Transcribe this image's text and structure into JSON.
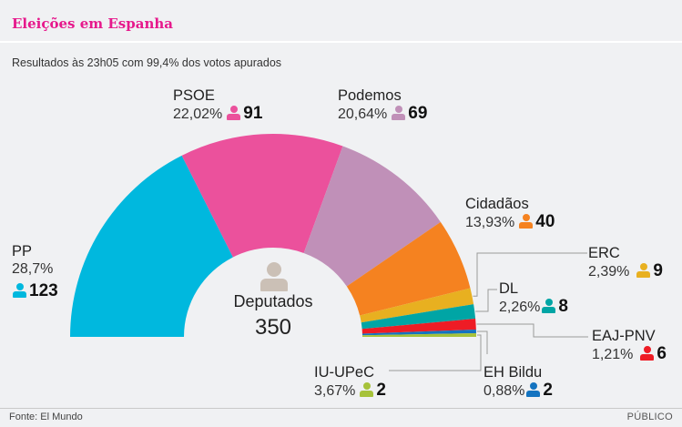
{
  "header": {
    "title": "Eleições em Espanha",
    "subtitle": "Resultados às 23h05 com 99,4% dos votos apurados"
  },
  "center": {
    "label": "Deputados",
    "total": "350",
    "icon": "person-icon"
  },
  "footer": {
    "source": "Fonte: El Mundo",
    "brand": "PÚBLICO"
  },
  "chart_data": {
    "type": "pie",
    "subtype": "hemicycle",
    "title": "Eleições em Espanha",
    "subtitle": "Resultados às 23h05 com 99,4% dos votos apurados",
    "total_seats": 350,
    "parties": [
      {
        "name": "PP",
        "pct": "28,7%",
        "pct_value": 28.7,
        "seats": 123,
        "color": "#00b8de"
      },
      {
        "name": "PSOE",
        "pct": "22,02%",
        "pct_value": 22.02,
        "seats": 91,
        "color": "#eb519c"
      },
      {
        "name": "Podemos",
        "pct": "20,64%",
        "pct_value": 20.64,
        "seats": 69,
        "color": "#c090b8"
      },
      {
        "name": "Cidadãos",
        "pct": "13,93%",
        "pct_value": 13.93,
        "seats": 40,
        "color": "#f58220"
      },
      {
        "name": "ERC",
        "pct": "2,39%",
        "pct_value": 2.39,
        "seats": 9,
        "color": "#e8b020"
      },
      {
        "name": "DL",
        "pct": "2,26%",
        "pct_value": 2.26,
        "seats": 8,
        "color": "#00a5a5"
      },
      {
        "name": "EAJ-PNV",
        "pct": "1,21%",
        "pct_value": 1.21,
        "seats": 6,
        "color": "#ee1c25"
      },
      {
        "name": "EH Bildu",
        "pct": "0,88%",
        "pct_value": 0.88,
        "seats": 2,
        "color": "#1473c0"
      },
      {
        "name": "IU-UPeC",
        "pct": "3,67%",
        "pct_value": 3.67,
        "seats": 2,
        "color": "#a6c23a"
      }
    ]
  }
}
